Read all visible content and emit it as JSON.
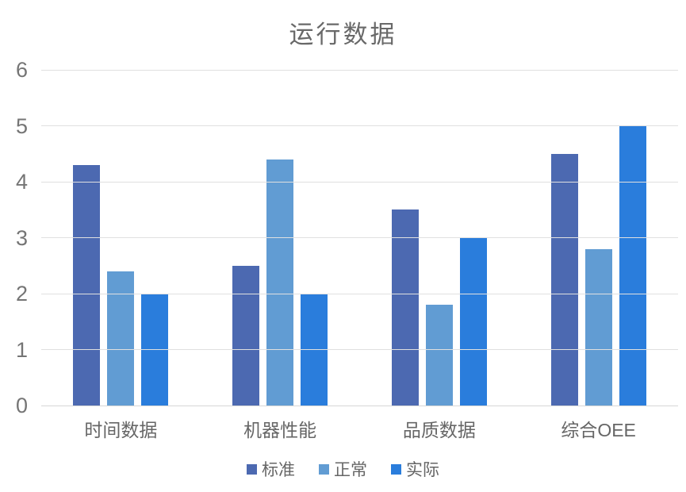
{
  "chart_data": {
    "type": "bar",
    "title": "运行数据",
    "categories": [
      "时间数据",
      "机器性能",
      "品质数据",
      "综合OEE"
    ],
    "series": [
      {
        "name": "标准",
        "color": "#4C69B1",
        "values": [
          4.3,
          2.5,
          3.5,
          4.5
        ]
      },
      {
        "name": "正常",
        "color": "#619CD3",
        "values": [
          2.4,
          4.4,
          1.8,
          2.8
        ]
      },
      {
        "name": "实际",
        "color": "#2A7DDC",
        "values": [
          2.0,
          2.0,
          3.0,
          5.0
        ]
      }
    ],
    "xlabel": "",
    "ylabel": "",
    "ylim": [
      0,
      6
    ],
    "yticks": [
      0,
      1,
      2,
      3,
      4,
      5,
      6
    ],
    "grid": true,
    "legend_position": "bottom"
  },
  "colors": {
    "gridline": "#E0E0E0",
    "baseline": "#D6D6D6",
    "title_text": "#696969",
    "tick_text": "#757575",
    "label_text": "#666666",
    "background": "#FFFFFF"
  }
}
